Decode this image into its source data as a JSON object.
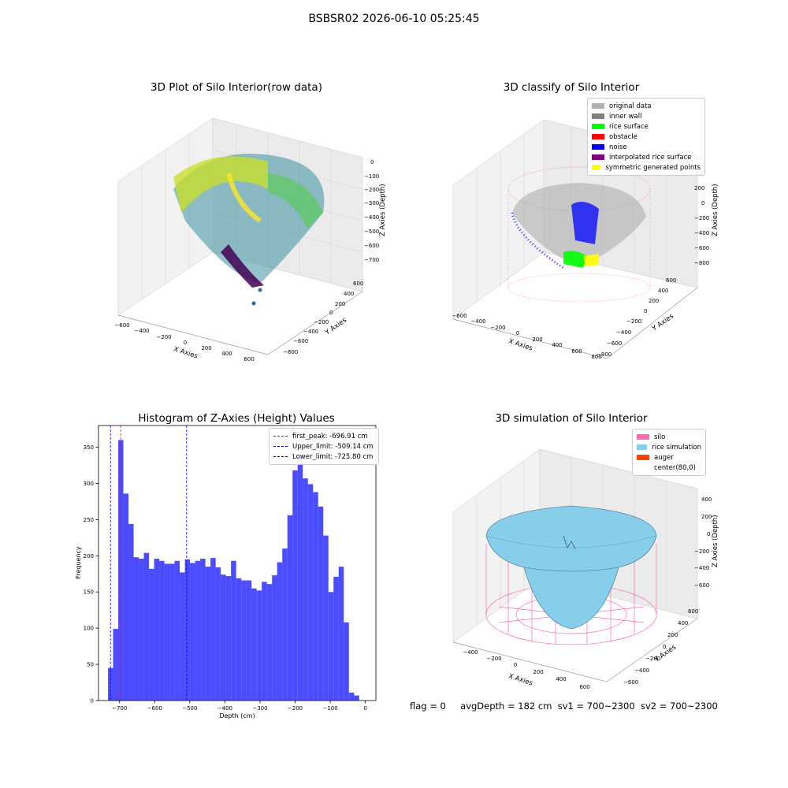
{
  "suptitle": "BSBSR02 2026-06-10 05:25:45",
  "panels": {
    "raw": {
      "title": "3D Plot of Silo Interior(row data)",
      "xlabel": "X Axies",
      "ylabel": "Y Axies",
      "zlabel": "Z Axies (Depth)",
      "xticks": [
        "−600",
        "−400",
        "−200",
        "0",
        "200",
        "400",
        "600"
      ],
      "yticks": [
        "600",
        "400",
        "200",
        "0",
        "−200",
        "−400",
        "−600",
        "−800"
      ],
      "zticks": [
        "0",
        "−100",
        "−200",
        "−300",
        "−400",
        "−500",
        "−600",
        "−700"
      ]
    },
    "classify": {
      "title": "3D classify of Silo Interior",
      "xlabel": "X Axies",
      "ylabel": "Y Axies",
      "zlabel": "Z Axies (Depth)",
      "xticks": [
        "−600",
        "−400",
        "−200",
        "0",
        "200",
        "400",
        "600",
        "800"
      ],
      "yticks": [
        "600",
        "400",
        "200",
        "0",
        "−200",
        "−400",
        "−600",
        "−800"
      ],
      "zticks": [
        "600",
        "400",
        "200",
        "0",
        "−200",
        "−400",
        "−600",
        "−800"
      ],
      "legend": [
        {
          "label": "original data",
          "color": "#b0b0b0"
        },
        {
          "label": "inner wall",
          "color": "#808080"
        },
        {
          "label": "rice surface",
          "color": "#00ff00"
        },
        {
          "label": "obstacle",
          "color": "#ff0000"
        },
        {
          "label": "noise",
          "color": "#0000ff"
        },
        {
          "label": "interpolated rice surface",
          "color": "#800080"
        },
        {
          "label": "symmetric generated points",
          "color": "#ffff00"
        }
      ]
    },
    "simulation": {
      "title": "3D simulation of Silo Interior",
      "xlabel": "X Axies",
      "ylabel": "Y Axies",
      "zlabel": "Z Axies (Depth)",
      "xticks": [
        "−400",
        "−200",
        "0",
        "200",
        "400",
        "600"
      ],
      "yticks": [
        "600",
        "400",
        "200",
        "0",
        "−200",
        "−400",
        "−600"
      ],
      "zticks": [
        "400",
        "200",
        "0",
        "−200",
        "−400",
        "−600"
      ],
      "legend": [
        {
          "label": "silo",
          "color": "#ff69b4"
        },
        {
          "label": "rice simulation",
          "color": "#87ceeb"
        },
        {
          "label": "auger",
          "color": "#ff4500"
        },
        {
          "label": "center(80,0)",
          "color": "#ffffff"
        }
      ]
    }
  },
  "chart_data": {
    "type": "bar",
    "title": "Histogram of Z-Axies (Height) Values",
    "xlabel": "Depth (cm)",
    "ylabel": "Frequency",
    "xlim": [
      -760,
      30
    ],
    "ylim": [
      0,
      380
    ],
    "xticks": [
      -700,
      -600,
      -500,
      -400,
      -300,
      -200,
      -100,
      0
    ],
    "yticks": [
      0,
      50,
      100,
      150,
      200,
      250,
      300,
      350
    ],
    "bin_width": 14.6,
    "bin_start": -733,
    "values": [
      45,
      99,
      360,
      286,
      244,
      198,
      196,
      204,
      182,
      196,
      193,
      189,
      189,
      193,
      177,
      195,
      190,
      193,
      196,
      185,
      197,
      184,
      174,
      172,
      193,
      169,
      166,
      166,
      155,
      152,
      164,
      161,
      173,
      191,
      210,
      256,
      318,
      336,
      307,
      299,
      288,
      268,
      228,
      150,
      171,
      185,
      108,
      11,
      7
    ],
    "bar_color": "#0000ff",
    "bar_alpha": 0.7,
    "vlines": [
      {
        "label": "first_peak: -696.91 cm",
        "x": -696.91,
        "color": "#ff0000"
      },
      {
        "label": "Upper_limit: -509.14 cm",
        "x": -509.14,
        "color": "#0000ff"
      },
      {
        "label": "Lower_limit: -725.80 cm",
        "x": -725.8,
        "color": "#0000ff"
      }
    ],
    "legend_position": "top-right",
    "grid": false
  },
  "status": {
    "flag": "flag = 0",
    "avg": "avgDepth = 182 cm",
    "sv1": "sv1 = 700~2300",
    "sv2": "sv2 = 700~2300"
  }
}
